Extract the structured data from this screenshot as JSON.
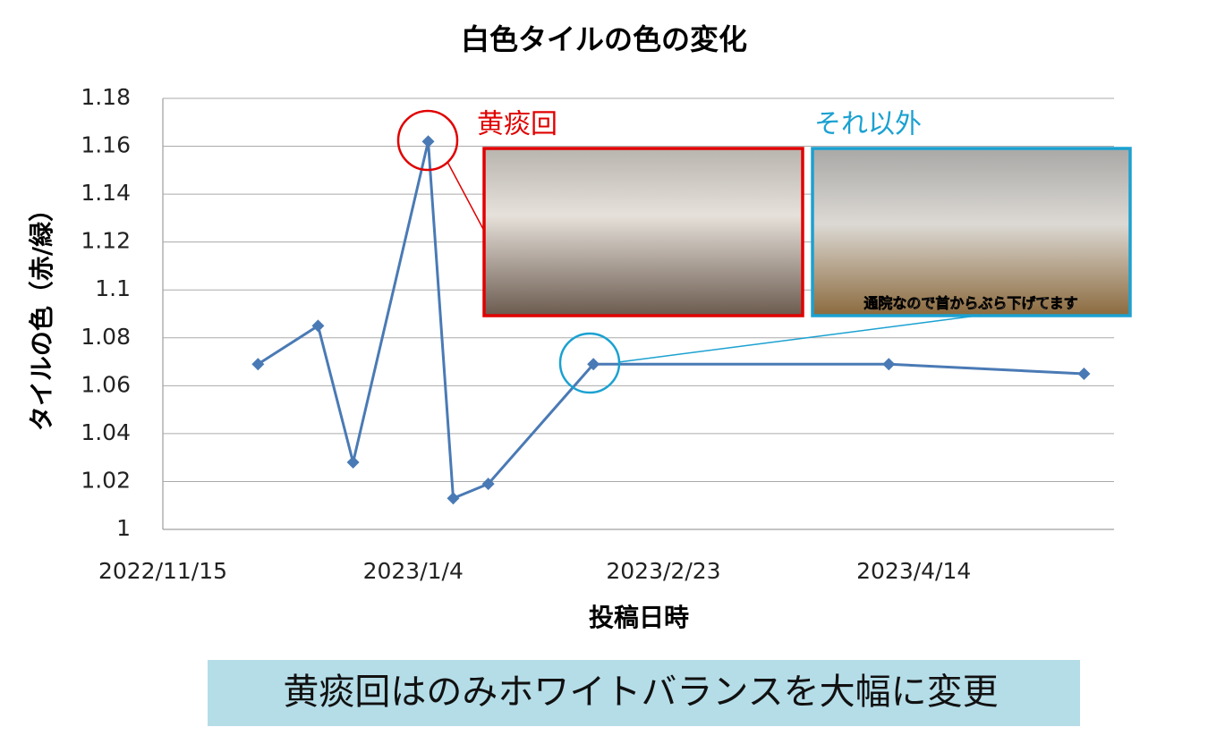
{
  "chart_data": {
    "type": "line",
    "title": "白色タイルの色の変化",
    "x_label": "投稿日時",
    "y_label": "タイルの色（赤/緑）",
    "x": [
      "2022/12/4",
      "2022/12/16",
      "2022/12/23",
      "2023/1/7",
      "2023/1/12",
      "2023/1/19",
      "2023/2/9",
      "2023/4/9",
      "2023/5/18"
    ],
    "series": [
      {
        "color": "#4a7ab5",
        "values": [
          1.069,
          1.085,
          1.028,
          1.162,
          1.013,
          1.019,
          1.069,
          1.069,
          1.065
        ]
      }
    ],
    "xlim": [
      "2022/11/15",
      "2023/5/24"
    ],
    "xticks": [
      "2022/11/15",
      "2023/1/4",
      "2023/2/23",
      "2023/4/14"
    ],
    "ylim": [
      1,
      1.18
    ],
    "yticks": [
      1,
      1.02,
      1.04,
      1.06,
      1.08,
      1.1,
      1.12,
      1.14,
      1.16,
      1.18
    ],
    "grid": true,
    "annotations": {
      "highlight": "黄痰回",
      "other": "それ以外",
      "photo_caption": "通院なので首からぶら下げてます",
      "conclusion": "黄痰回はのみホワイトバランスを大幅に変更"
    }
  }
}
